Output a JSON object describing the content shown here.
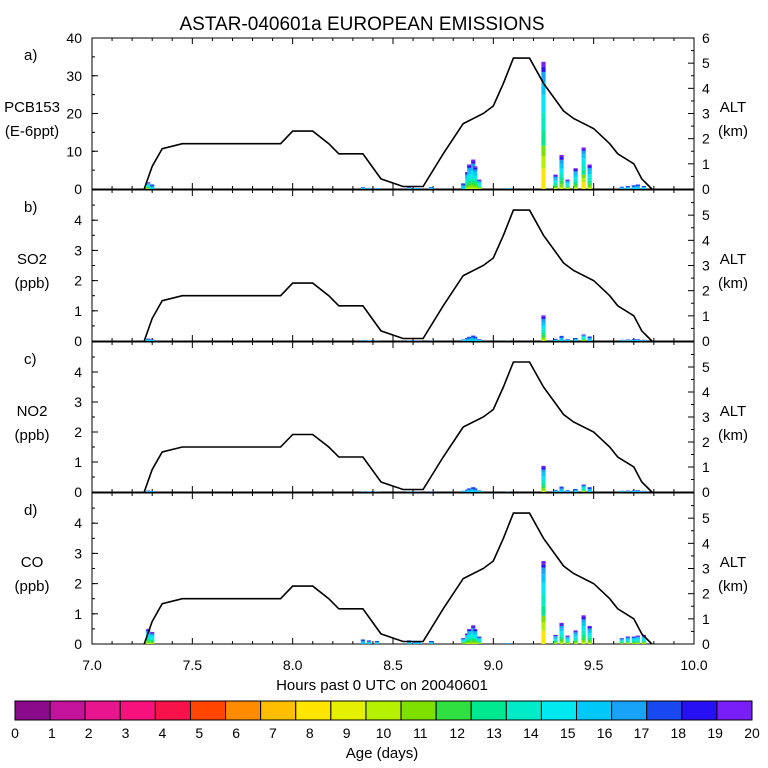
{
  "title": "ASTAR-040601a EUROPEAN EMISSIONS",
  "xlabel": "Hours past 0 UTC on 20040601",
  "x_ticks": [
    "7.0",
    "7.5",
    "8.0",
    "8.5",
    "9.0",
    "9.5",
    "10.0"
  ],
  "colorbar": {
    "label": "Age (days)",
    "ticks": [
      "0",
      "1",
      "2",
      "3",
      "4",
      "5",
      "6",
      "7",
      "8",
      "9",
      "10",
      "11",
      "12",
      "13",
      "14",
      "15",
      "16",
      "17",
      "18",
      "19",
      "20"
    ],
    "colors": [
      "#8b0a8c",
      "#c3129c",
      "#e8158f",
      "#f7117c",
      "#f8124a",
      "#ff4500",
      "#ff8c00",
      "#ffbf00",
      "#ffe500",
      "#e5f000",
      "#b5f000",
      "#7ee000",
      "#2fe040",
      "#00e890",
      "#00ecc8",
      "#00e8f0",
      "#00c8f8",
      "#18a2f8",
      "#1848f0",
      "#2810f4",
      "#7a1ef8"
    ]
  },
  "chart_data": {
    "type": "bar",
    "x": [
      7.28,
      7.3,
      8.35,
      8.38,
      8.42,
      8.58,
      8.61,
      8.63,
      8.69,
      8.85,
      8.87,
      8.88,
      8.9,
      8.91,
      8.93,
      9.07,
      9.25,
      9.31,
      9.34,
      9.37,
      9.41,
      9.45,
      9.48,
      9.64,
      9.67,
      9.7,
      9.72,
      9.75
    ],
    "altitude": {
      "name": "ALT",
      "x": [
        7.26,
        7.3,
        7.35,
        7.45,
        7.94,
        8.0,
        8.1,
        8.18,
        8.23,
        8.35,
        8.44,
        8.55,
        8.65,
        8.75,
        8.85,
        8.95,
        9.0,
        9.05,
        9.1,
        9.18,
        9.25,
        9.35,
        9.4,
        9.5,
        9.58,
        9.62,
        9.7,
        9.74,
        9.79
      ],
      "y": [
        0.0,
        0.9,
        1.6,
        1.8,
        1.8,
        2.3,
        2.3,
        1.8,
        1.4,
        1.4,
        0.4,
        0.1,
        0.1,
        1.4,
        2.6,
        3.0,
        3.3,
        4.2,
        5.2,
        5.2,
        4.2,
        3.1,
        2.8,
        2.4,
        1.8,
        1.4,
        1.0,
        0.4,
        0.0
      ]
    },
    "panels": [
      {
        "letter": "a)",
        "ylabel": [
          "PCB153",
          "(E-6ppt)"
        ],
        "ylim": [
          0,
          40
        ],
        "yticks": [
          0,
          10,
          20,
          30,
          40
        ],
        "alt_ylim": [
          0,
          6
        ],
        "alt_ticks": [
          0,
          1,
          2,
          3,
          4,
          5,
          6
        ],
        "alt_label": [
          "ALT",
          "(km)"
        ],
        "values": [
          1.8,
          1.2,
          0.5,
          0.3,
          0.2,
          0.4,
          0.2,
          0.2,
          0.5,
          1.5,
          4.5,
          6.5,
          7.8,
          6.0,
          2.5,
          0.2,
          33.7,
          3.8,
          9.0,
          2.5,
          5.5,
          11.0,
          6.5,
          0.6,
          0.8,
          1.0,
          1.2,
          0.8
        ]
      },
      {
        "letter": "b)",
        "ylabel": [
          "SO2",
          "(ppb)"
        ],
        "ylim": [
          0,
          5
        ],
        "yticks": [
          0,
          1,
          2,
          3,
          4
        ],
        "alt_ylim": [
          0,
          6
        ],
        "alt_ticks": [
          0,
          1,
          2,
          3,
          4,
          5
        ],
        "alt_label": [
          "ALT",
          "(km)"
        ],
        "values": [
          0.08,
          0.05,
          0.03,
          0.02,
          0.01,
          0.02,
          0.01,
          0.01,
          0.02,
          0.05,
          0.1,
          0.14,
          0.18,
          0.14,
          0.06,
          0.01,
          0.85,
          0.07,
          0.17,
          0.06,
          0.1,
          0.22,
          0.15,
          0.04,
          0.05,
          0.06,
          0.06,
          0.04
        ]
      },
      {
        "letter": "c)",
        "ylabel": [
          "NO2",
          "(ppb)"
        ],
        "ylim": [
          0,
          5
        ],
        "yticks": [
          0,
          1,
          2,
          3,
          4
        ],
        "alt_ylim": [
          0,
          6
        ],
        "alt_ticks": [
          0,
          1,
          2,
          3,
          4,
          5
        ],
        "alt_label": [
          "ALT",
          "(km)"
        ],
        "values": [
          0.05,
          0.03,
          0.02,
          0.02,
          0.01,
          0.02,
          0.01,
          0.01,
          0.02,
          0.04,
          0.08,
          0.12,
          0.16,
          0.12,
          0.05,
          0.01,
          0.87,
          0.07,
          0.18,
          0.06,
          0.1,
          0.25,
          0.16,
          0.04,
          0.05,
          0.05,
          0.06,
          0.04
        ]
      },
      {
        "letter": "d)",
        "ylabel": [
          "CO",
          "(ppb)"
        ],
        "ylim": [
          0,
          5
        ],
        "yticks": [
          0,
          1,
          2,
          3,
          4
        ],
        "alt_ylim": [
          0,
          6
        ],
        "alt_ticks": [
          0,
          1,
          2,
          3,
          4,
          5
        ],
        "alt_label": [
          "ALT",
          "(km)"
        ],
        "values": [
          0.5,
          0.4,
          0.15,
          0.12,
          0.1,
          0.12,
          0.08,
          0.08,
          0.1,
          0.2,
          0.35,
          0.5,
          0.62,
          0.5,
          0.25,
          0.03,
          2.75,
          0.3,
          0.7,
          0.28,
          0.45,
          0.95,
          0.6,
          0.2,
          0.25,
          0.25,
          0.28,
          0.3
        ]
      }
    ]
  }
}
